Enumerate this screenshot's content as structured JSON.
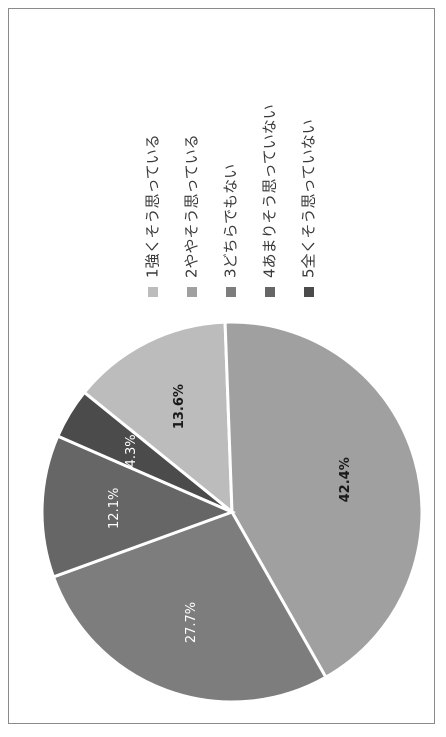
{
  "chart_data": {
    "type": "pie",
    "title": "",
    "categories": [
      "1強くそう思っている",
      "2ややそう思っている",
      "3どちらでもない",
      "4あまりそう思っていない",
      "5全くそう思っていない"
    ],
    "values": [
      13.6,
      42.4,
      27.7,
      12.1,
      4.3
    ],
    "labels": [
      "13.6%",
      "42.4%",
      "27.7%",
      "12.1%",
      "4.3%"
    ],
    "colors": [
      "#bcbcbc",
      "#a0a0a0",
      "#7d7d7d",
      "#666666",
      "#4b4b4b"
    ],
    "label_colors": [
      "#1a1a1a",
      "#1a1a1a",
      "#ffffff",
      "#ffffff",
      "#ffffff"
    ],
    "label_bold": [
      true,
      true,
      false,
      false,
      false
    ],
    "legend_position": "right, rotated 90°"
  }
}
